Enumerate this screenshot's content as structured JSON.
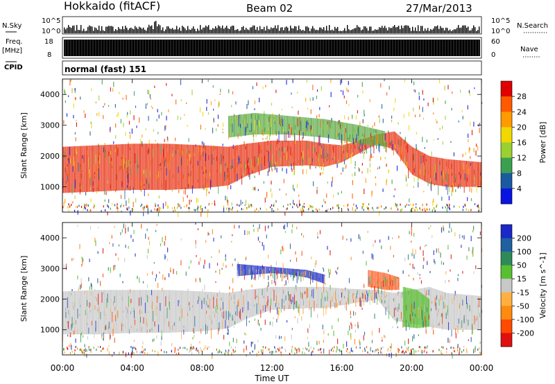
{
  "header": {
    "station": "Hokkaido (fitACF)",
    "beam": "Beam 02",
    "date": "27/Mar/2013"
  },
  "strips": {
    "nsky_label": "N.Sky",
    "nsearch_label": "N.Search",
    "nsky_ticks": [
      "10^5",
      "10^0"
    ],
    "nsearch_ticks": [
      "10^5",
      "10^0"
    ],
    "freq_label": "Freq.",
    "freq_unit": "[MHz]",
    "freq_ticks": [
      "18",
      "8"
    ],
    "nave_label": "Nave",
    "nave_ticks": [
      "60",
      "0"
    ],
    "cpid_label": "CPID",
    "cpid_value": "normal (fast) 151"
  },
  "chart_data": [
    {
      "type": "heatmap",
      "name": "power-panel",
      "ylabel": "Slant Range [km]",
      "xlabel": "",
      "x_ticks": [
        "00:00",
        "04:00",
        "08:00",
        "12:00",
        "16:00",
        "20:00",
        "00:00"
      ],
      "x_range_hours": [
        0,
        24
      ],
      "y_ticks": [
        1000,
        2000,
        3000,
        4000
      ],
      "ylim": [
        180,
        4500
      ],
      "colorbar": {
        "label": "Power [dB]",
        "tick_labels": [
          "28",
          "24",
          "20",
          "16",
          "12",
          "8",
          "4"
        ],
        "colors": [
          "#e00000",
          "#ff5a00",
          "#ff9a00",
          "#f0d800",
          "#9ad030",
          "#3aa050",
          "#1a5aa0",
          "#0a14e0"
        ]
      },
      "bands": [
        {
          "t": [
            0,
            2,
            4,
            6,
            8,
            9.5,
            10.5,
            12,
            14,
            15,
            16,
            17,
            18,
            19,
            20,
            21,
            22,
            24
          ],
          "low": [
            800,
            850,
            900,
            900,
            950,
            1050,
            1350,
            1650,
            1700,
            1650,
            1800,
            2100,
            2400,
            2200,
            1400,
            1100,
            1000,
            1000
          ],
          "high": [
            2300,
            2350,
            2400,
            2400,
            2350,
            2300,
            2400,
            2500,
            2500,
            2400,
            2350,
            2500,
            2700,
            2800,
            2300,
            2000,
            1900,
            1800
          ],
          "color": "#e83010"
        },
        {
          "t": [
            9.5,
            11,
            13,
            15,
            17,
            18.5
          ],
          "low": [
            2600,
            2700,
            2700,
            2600,
            2400,
            2300
          ],
          "high": [
            3300,
            3400,
            3300,
            3200,
            3000,
            2800
          ],
          "color": "#5aa840"
        }
      ]
    },
    {
      "type": "heatmap",
      "name": "velocity-panel",
      "ylabel": "Slant Range [km]",
      "xlabel": "Time UT",
      "x_ticks": [
        "00:00",
        "04:00",
        "08:00",
        "12:00",
        "16:00",
        "20:00",
        "00:00"
      ],
      "x_range_hours": [
        0,
        24
      ],
      "y_ticks": [
        1000,
        2000,
        3000,
        4000
      ],
      "ylim": [
        180,
        4500
      ],
      "colorbar": {
        "label": "Velocity [m s^-1]",
        "tick_labels": [
          "200",
          "100",
          "50",
          "15",
          "-15",
          "-50",
          "-100",
          "-200"
        ],
        "colors": [
          "#1a28c8",
          "#2060a0",
          "#2f8a5a",
          "#58c030",
          "#c8c8c8",
          "#ffb040",
          "#ff8a10",
          "#ff4a00",
          "#e01010"
        ]
      },
      "bands": [
        {
          "t": [
            0,
            2,
            4,
            6,
            8,
            9.5,
            10.5,
            12,
            14,
            15,
            16,
            18,
            19,
            20,
            21,
            22,
            24
          ],
          "low": [
            850,
            850,
            900,
            900,
            950,
            1050,
            1350,
            1650,
            1700,
            1700,
            1800,
            2000,
            1300,
            1200,
            1100,
            1000,
            1000
          ],
          "high": [
            2250,
            2300,
            2300,
            2300,
            2250,
            2200,
            2300,
            2400,
            2400,
            2400,
            2350,
            2300,
            2200,
            2300,
            2400,
            2200,
            2100
          ],
          "color": "#c6c6c6"
        },
        {
          "t": [
            10,
            11,
            12,
            13,
            14,
            15
          ],
          "low": [
            2750,
            2800,
            2850,
            2800,
            2700,
            2500
          ],
          "high": [
            3150,
            3100,
            3050,
            3000,
            2950,
            2800
          ],
          "color": "#1a28c8"
        },
        {
          "t": [
            17.5,
            18.5,
            19.3
          ],
          "low": [
            2400,
            2300,
            2300
          ],
          "high": [
            2950,
            2850,
            2700
          ],
          "color": "#ff5a20"
        },
        {
          "t": [
            19.5,
            20.3,
            21
          ],
          "low": [
            1100,
            1050,
            1100
          ],
          "high": [
            2400,
            2300,
            2000
          ],
          "color": "#58c030"
        }
      ]
    }
  ]
}
